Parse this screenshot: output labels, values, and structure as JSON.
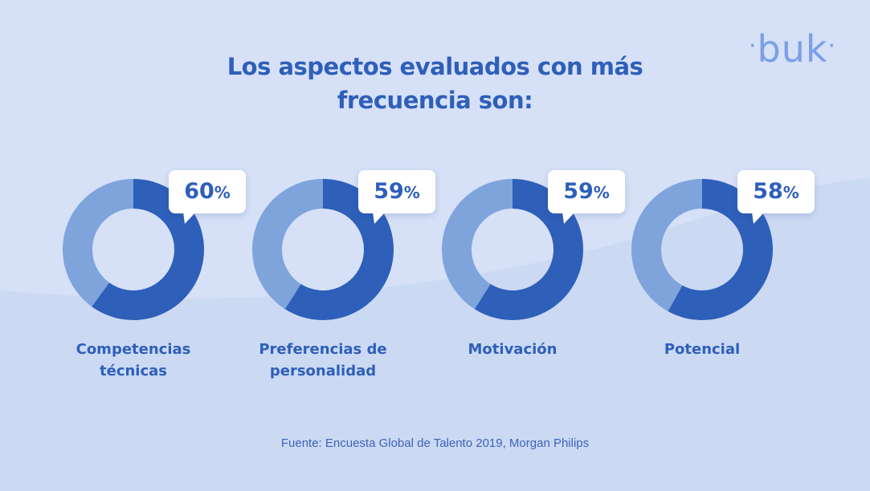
{
  "brand": {
    "logo_text": "buk",
    "primary_color": "#2e5fb9",
    "secondary_color": "#7fa4dc",
    "background_color": "#d6e0f7"
  },
  "chart_data": {
    "type": "pie",
    "style": "donut",
    "title": "Los aspectos evaluados con más frecuencia son:",
    "title_lines": [
      "Los aspectos evaluados con más",
      "frecuencia son:"
    ],
    "unit": "%",
    "categories": [
      "Competencias\ntécnicas",
      "Preferencias de\npersonalidad",
      "Motivación",
      "Potencial"
    ],
    "values": [
      60,
      59,
      59,
      58
    ],
    "colors": {
      "value": "#2e5fb9",
      "remainder": "#7fa4dc"
    }
  },
  "source": "Fuente: Encuesta Global de Talento 2019, Morgan Philips"
}
